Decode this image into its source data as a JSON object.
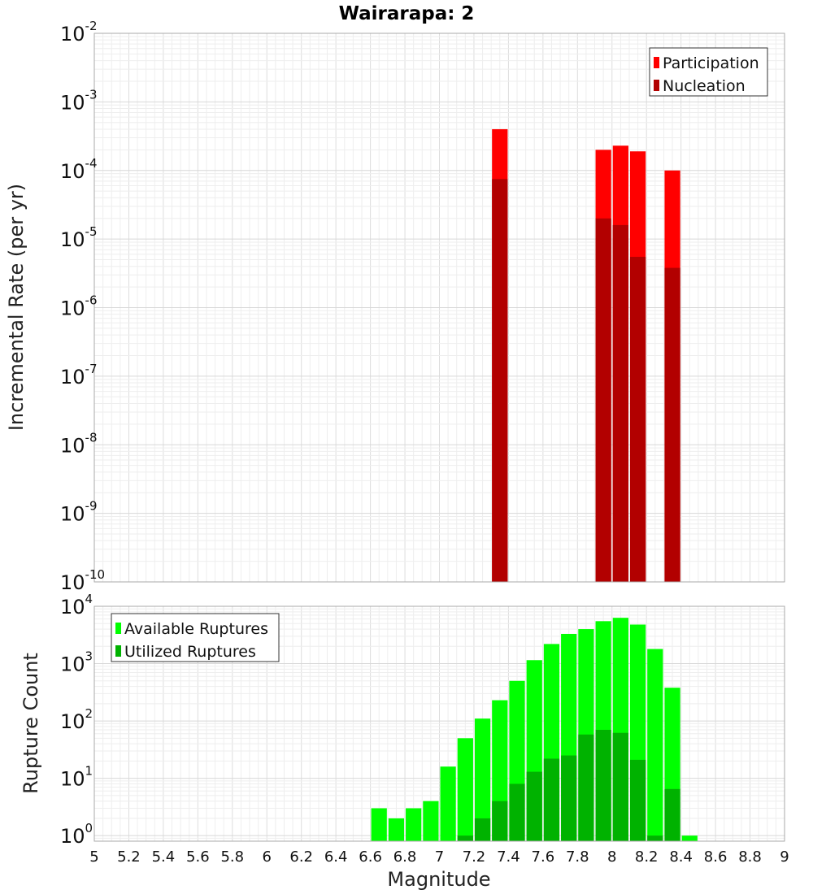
{
  "chart_data": [
    {
      "type": "bar",
      "title": "Wairarapa: 2",
      "xlabel": "",
      "ylabel": "Incremental Rate (per yr)",
      "yscale": "log",
      "ylim": [
        1e-10,
        0.01
      ],
      "xlim": [
        5,
        9
      ],
      "y_ticks": [
        {
          "base": "10",
          "exp": "-10"
        },
        {
          "base": "10",
          "exp": "-9"
        },
        {
          "base": "10",
          "exp": "-8"
        },
        {
          "base": "10",
          "exp": "-7"
        },
        {
          "base": "10",
          "exp": "-6"
        },
        {
          "base": "10",
          "exp": "-5"
        },
        {
          "base": "10",
          "exp": "-4"
        },
        {
          "base": "10",
          "exp": "-3"
        },
        {
          "base": "10",
          "exp": "-2"
        }
      ],
      "grid": true,
      "legend_position": "top-right",
      "series": [
        {
          "name": "Participation",
          "color": "#ff0000",
          "x": [
            7.35,
            7.95,
            8.05,
            8.15,
            8.35
          ],
          "values": [
            0.0004,
            0.0002,
            0.00023,
            0.00019,
            0.0001
          ]
        },
        {
          "name": "Nucleation",
          "color": "#b20000",
          "x": [
            7.35,
            7.95,
            8.05,
            8.15,
            8.35
          ],
          "values": [
            7.5e-05,
            2e-05,
            1.6e-05,
            5.5e-06,
            3.8e-06
          ]
        }
      ]
    },
    {
      "type": "bar",
      "xlabel": "Magnitude",
      "ylabel": "Rupture Count",
      "yscale": "log",
      "ylim": [
        0.8,
        10000
      ],
      "xlim": [
        5,
        9
      ],
      "x_ticks": [
        "5",
        "5.2",
        "5.4",
        "5.6",
        "5.8",
        "6",
        "6.2",
        "6.4",
        "6.6",
        "6.8",
        "7",
        "7.2",
        "7.4",
        "7.6",
        "7.8",
        "8",
        "8.2",
        "8.4",
        "8.6",
        "8.8",
        "9"
      ],
      "y_ticks": [
        {
          "base": "10",
          "exp": "0"
        },
        {
          "base": "10",
          "exp": "1"
        },
        {
          "base": "10",
          "exp": "2"
        },
        {
          "base": "10",
          "exp": "3"
        },
        {
          "base": "10",
          "exp": "4"
        }
      ],
      "grid": true,
      "legend_position": "top-left",
      "series": [
        {
          "name": "Available Ruptures",
          "color": "#00ff00",
          "x": [
            6.65,
            6.75,
            6.85,
            6.95,
            7.05,
            7.15,
            7.25,
            7.35,
            7.45,
            7.55,
            7.65,
            7.75,
            7.85,
            7.95,
            8.05,
            8.15,
            8.25,
            8.35,
            8.45
          ],
          "values": [
            3,
            2,
            3,
            4,
            16,
            50,
            110,
            230,
            500,
            1150,
            2200,
            3300,
            4000,
            5500,
            6300,
            4800,
            1800,
            380,
            1
          ]
        },
        {
          "name": "Utilized Ruptures",
          "color": "#00b200",
          "x": [
            7.15,
            7.25,
            7.35,
            7.45,
            7.55,
            7.65,
            7.75,
            7.85,
            7.95,
            8.05,
            8.15,
            8.25,
            8.35
          ],
          "values": [
            1,
            2,
            4,
            8,
            13,
            22,
            25,
            58,
            70,
            62,
            21,
            1,
            6.5
          ]
        }
      ]
    }
  ]
}
